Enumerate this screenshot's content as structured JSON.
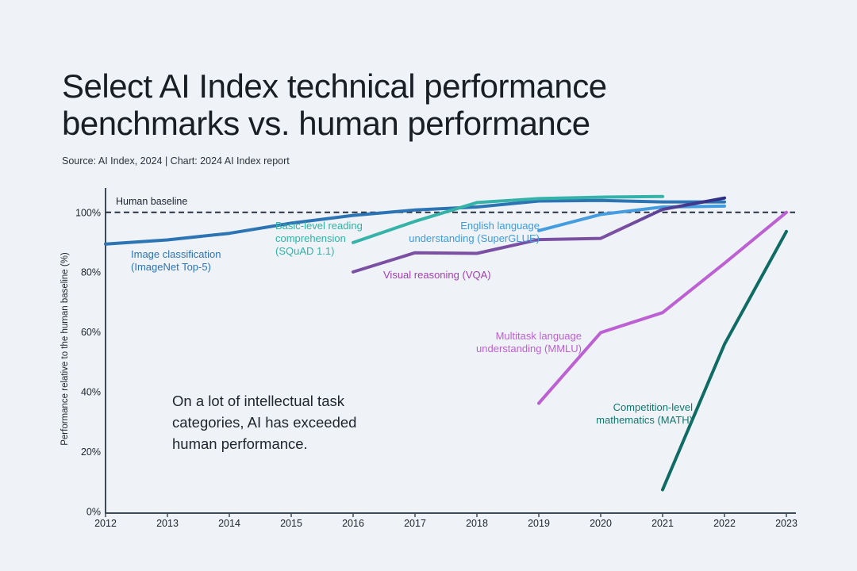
{
  "title": {
    "line1": "Select AI Index technical performance",
    "line2": "benchmarks vs. human performance"
  },
  "source_line": "Source: AI Index, 2024 | Chart: 2024 AI Index report",
  "y_axis_title": "Performance relative to the human baseline (%)",
  "human_baseline_label": "Human baseline",
  "annotation": {
    "line1": "On a lot of intellectual task",
    "line2": "categories, AI has exceeded",
    "line3": "human performance."
  },
  "colors": {
    "background": "#eff3f8",
    "axis": "#3e4a59",
    "tick_text": "#1d232d",
    "baseline_dash": "#273142",
    "title_text": "#191d24"
  },
  "chart_data": {
    "type": "line",
    "title": "Select AI Index technical performance benchmarks vs. human performance",
    "xlabel": "",
    "ylabel": "Performance relative to the human baseline (%)",
    "x_ticks": [
      2012,
      2013,
      2014,
      2015,
      2016,
      2017,
      2018,
      2019,
      2020,
      2021,
      2022,
      2023
    ],
    "y_ticks": {
      "values": [
        0,
        20,
        40,
        60,
        80,
        100
      ],
      "labels": [
        "0%",
        "20%",
        "40%",
        "60%",
        "80%",
        "100%"
      ]
    },
    "ylim": [
      0,
      108
    ],
    "grid": false,
    "legend_position": "inline-labels",
    "human_baseline_value": 100,
    "series": [
      {
        "id": "imagenet",
        "name": "Image classification (ImageNet Top-5)",
        "label_lines": [
          "Image classification",
          "(ImageNet Top-5)"
        ],
        "color": "#2d74b5",
        "label_color": "#2d74b5",
        "points": [
          [
            2012,
            89.4
          ],
          [
            2013,
            90.8
          ],
          [
            2014,
            93.0
          ],
          [
            2015,
            96.4
          ],
          [
            2016,
            99.0
          ],
          [
            2017,
            100.8
          ],
          [
            2018,
            101.8
          ],
          [
            2019,
            103.8
          ],
          [
            2020,
            104.0
          ],
          [
            2021,
            103.5
          ],
          [
            2022,
            103.5
          ]
        ]
      },
      {
        "id": "squad",
        "name": "Basic-level reading comprehension (SQuAD 1.1)",
        "label_lines": [
          "Basic-level reading",
          "comprehension",
          "(SQuAD 1.1)"
        ],
        "color": "#36b3a8",
        "label_color": "#2fb3a5",
        "points": [
          [
            2016,
            89.9
          ],
          [
            2017,
            97.0
          ],
          [
            2018,
            103.3
          ],
          [
            2019,
            104.6
          ],
          [
            2020,
            105.1
          ],
          [
            2021,
            105.3
          ]
        ]
      },
      {
        "id": "superglue",
        "name": "English language understanding (SuperGLUE)",
        "label_lines": [
          "English language",
          "understanding (SuperGLUE)"
        ],
        "color": "#459de0",
        "label_color": "#3c9bdf",
        "points": [
          [
            2019,
            93.9
          ],
          [
            2020,
            99.3
          ],
          [
            2021,
            101.8
          ],
          [
            2022,
            102.1
          ]
        ]
      },
      {
        "id": "vqa",
        "name": "Visual reasoning (VQA)",
        "label_lines": [
          "Visual reasoning (VQA)"
        ],
        "color": "#7b50a3",
        "gradient_stops": [
          [
            0,
            "#7b50a3"
          ],
          [
            0.72,
            "#7b50a3"
          ],
          [
            0.86,
            "#503f92"
          ],
          [
            1,
            "#2c2e84"
          ]
        ],
        "label_color": "#a13fae",
        "points": [
          [
            2016,
            80.1
          ],
          [
            2017,
            86.5
          ],
          [
            2018,
            86.3
          ],
          [
            2019,
            90.9
          ],
          [
            2020,
            91.3
          ],
          [
            2021,
            101.0
          ],
          [
            2022,
            104.8
          ]
        ]
      },
      {
        "id": "mmlu",
        "name": "Multitask language understanding (MMLU)",
        "label_lines": [
          "Multitask language",
          "understanding (MMLU)"
        ],
        "color": "#bd60d4",
        "label_color": "#bd60d4",
        "points": [
          [
            2019,
            36.2
          ],
          [
            2020,
            59.8
          ],
          [
            2021,
            66.5
          ],
          [
            2022,
            83.0
          ],
          [
            2023,
            100.0
          ]
        ]
      },
      {
        "id": "math",
        "name": "Competition-level mathematics (MATH)",
        "label_lines": [
          "Competition-level",
          "mathematics (MATH)"
        ],
        "color": "#0f6b63",
        "label_color": "#14756c",
        "points": [
          [
            2021,
            7.3
          ],
          [
            2022,
            55.9
          ],
          [
            2023,
            93.6
          ]
        ]
      }
    ]
  }
}
